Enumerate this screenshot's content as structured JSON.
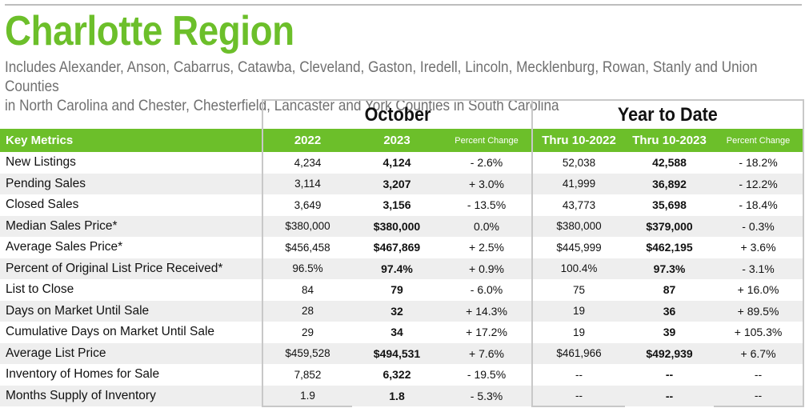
{
  "title": "Charlotte Region",
  "subtitle_line1": "Includes Alexander, Anson, Cabarrus, Catawba, Cleveland, Gaston, Iredell, Lincoln, Mecklenburg, Rowan, Stanly and Union Counties",
  "subtitle_line2": "in North Carolina and Chester, Chesterfield, Lancaster and York Counties in South Carolina",
  "groups": {
    "month": "October",
    "ytd": "Year to Date"
  },
  "columns": {
    "metric": "Key Metrics",
    "m_prev": "2022",
    "m_cur": "2023",
    "m_pct": "Percent Change",
    "y_prev": "Thru 10-2022",
    "y_cur": "Thru 10-2023",
    "y_pct": "Percent Change"
  },
  "colors": {
    "accent": "#6cbf2a",
    "subtitle": "#707070",
    "row_shade": "#eeeeee"
  },
  "rows": [
    {
      "metric": "New Listings",
      "m_prev": "4,234",
      "m_cur": "4,124",
      "m_pct": "- 2.6%",
      "y_prev": "52,038",
      "y_cur": "42,588",
      "y_pct": "- 18.2%"
    },
    {
      "metric": "Pending Sales",
      "m_prev": "3,114",
      "m_cur": "3,207",
      "m_pct": "+ 3.0%",
      "y_prev": "41,999",
      "y_cur": "36,892",
      "y_pct": "- 12.2%"
    },
    {
      "metric": "Closed Sales",
      "m_prev": "3,649",
      "m_cur": "3,156",
      "m_pct": "- 13.5%",
      "y_prev": "43,773",
      "y_cur": "35,698",
      "y_pct": "- 18.4%"
    },
    {
      "metric": "Median Sales Price*",
      "m_prev": "$380,000",
      "m_cur": "$380,000",
      "m_pct": "0.0%",
      "y_prev": "$380,000",
      "y_cur": "$379,000",
      "y_pct": "- 0.3%"
    },
    {
      "metric": "Average Sales Price*",
      "m_prev": "$456,458",
      "m_cur": "$467,869",
      "m_pct": "+ 2.5%",
      "y_prev": "$445,999",
      "y_cur": "$462,195",
      "y_pct": "+ 3.6%"
    },
    {
      "metric": "Percent of Original List Price Received*",
      "m_prev": "96.5%",
      "m_cur": "97.4%",
      "m_pct": "+ 0.9%",
      "y_prev": "100.4%",
      "y_cur": "97.3%",
      "y_pct": "- 3.1%"
    },
    {
      "metric": "List to Close",
      "m_prev": "84",
      "m_cur": "79",
      "m_pct": "- 6.0%",
      "y_prev": "75",
      "y_cur": "87",
      "y_pct": "+ 16.0%"
    },
    {
      "metric": "Days on Market Until Sale",
      "m_prev": "28",
      "m_cur": "32",
      "m_pct": "+ 14.3%",
      "y_prev": "19",
      "y_cur": "36",
      "y_pct": "+ 89.5%"
    },
    {
      "metric": "Cumulative Days on Market Until Sale",
      "m_prev": "29",
      "m_cur": "34",
      "m_pct": "+ 17.2%",
      "y_prev": "19",
      "y_cur": "39",
      "y_pct": "+ 105.3%"
    },
    {
      "metric": "Average List Price",
      "m_prev": "$459,528",
      "m_cur": "$494,531",
      "m_pct": "+ 7.6%",
      "y_prev": "$461,966",
      "y_cur": "$492,939",
      "y_pct": "+ 6.7%"
    },
    {
      "metric": "Inventory of Homes for Sale",
      "m_prev": "7,852",
      "m_cur": "6,322",
      "m_pct": "- 19.5%",
      "y_prev": "--",
      "y_cur": "--",
      "y_pct": "--"
    },
    {
      "metric": "Months Supply of Inventory",
      "m_prev": "1.9",
      "m_cur": "1.8",
      "m_pct": "- 5.3%",
      "y_prev": "--",
      "y_cur": "--",
      "y_pct": "--"
    }
  ]
}
